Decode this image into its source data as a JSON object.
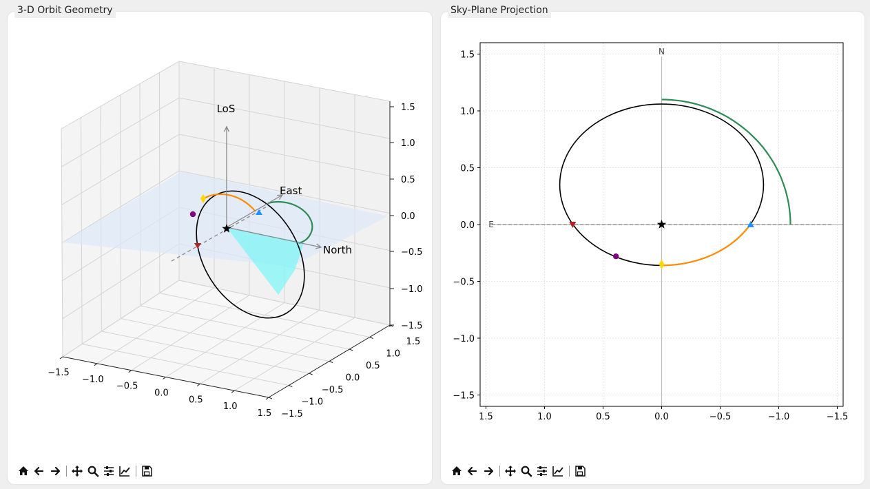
{
  "panels": {
    "left_title": "3-D Orbit Geometry",
    "right_title": "Sky-Plane Projection"
  },
  "toolbar": {
    "buttons": [
      "home-icon",
      "back-icon",
      "forward-icon",
      "pan-icon",
      "zoom-icon",
      "configure-icon",
      "axes-edit-icon",
      "save-icon"
    ]
  },
  "colors": {
    "orbit": "#000000",
    "orange_arc": "#ff8c00",
    "green_arc": "#2e8b57",
    "ascending_node": "#1e90ff",
    "descending_node": "#b22222",
    "periastron": "#ffd700",
    "current_position": "#800080",
    "sky_plane": "#dce8fb",
    "cyan_wedge": "#80f6f6"
  },
  "chart_data": [
    {
      "type": "line",
      "title": "",
      "projection": "3d",
      "axis_ticks": {
        "x": [
          "−1.5",
          "−1.0",
          "−0.5",
          "0.0",
          "0.5",
          "1.0",
          "1.5"
        ],
        "y": [
          "−1.5",
          "−1.0",
          "−0.5",
          "0.0",
          "0.5",
          "1.0",
          "1.5"
        ],
        "z": [
          "−1.5",
          "−1.0",
          "−0.5",
          "0.0",
          "0.5",
          "1.0",
          "1.5"
        ]
      },
      "xlim": [
        -1.5,
        1.5
      ],
      "ylim": [
        -1.5,
        1.5
      ],
      "zlim": [
        -1.5,
        1.5
      ],
      "grid": true,
      "annotations": [
        "LoS",
        "East",
        "North"
      ],
      "markers": [
        "star",
        "ascending-node",
        "descending-node",
        "periastron",
        "current-position"
      ]
    },
    {
      "type": "line",
      "title": "",
      "xlim": [
        1.55,
        -1.55
      ],
      "ylim": [
        -1.6,
        1.6
      ],
      "x_ticks": [
        "1.5",
        "1.0",
        "0.5",
        "0.0",
        "−0.5",
        "−1.0",
        "−1.5"
      ],
      "y_ticks": [
        "1.5",
        "1.0",
        "0.5",
        "0.0",
        "−0.5",
        "−1.0",
        "−1.5"
      ],
      "x_tick_values": [
        1.5,
        1.0,
        0.5,
        0.0,
        -0.5,
        -1.0,
        -1.5
      ],
      "y_tick_values": [
        1.5,
        1.0,
        0.5,
        0.0,
        -0.5,
        -1.0,
        -1.5
      ],
      "grid": true,
      "compass": {
        "north": "N",
        "east": "E"
      },
      "orbit_ellipse": {
        "center": [
          0.0,
          0.35
        ],
        "semi_x": 0.87,
        "semi_y": 0.71
      },
      "green_arc": {
        "center": [
          0.0,
          0.0
        ],
        "radius": 1.1,
        "from_deg": 90,
        "to_deg": 0
      },
      "node_line": {
        "from": [
          1.45,
          0.0
        ],
        "to": [
          -1.45,
          0.0
        ]
      },
      "markers": [
        {
          "name": "star",
          "x": 0.0,
          "y": 0.0
        },
        {
          "name": "ascending-node",
          "x": -0.76,
          "y": 0.0
        },
        {
          "name": "descending-node",
          "x": 0.76,
          "y": 0.0
        },
        {
          "name": "periastron",
          "x": 0.0,
          "y": -0.35
        },
        {
          "name": "current-position",
          "x": 0.39,
          "y": -0.28
        }
      ]
    }
  ]
}
